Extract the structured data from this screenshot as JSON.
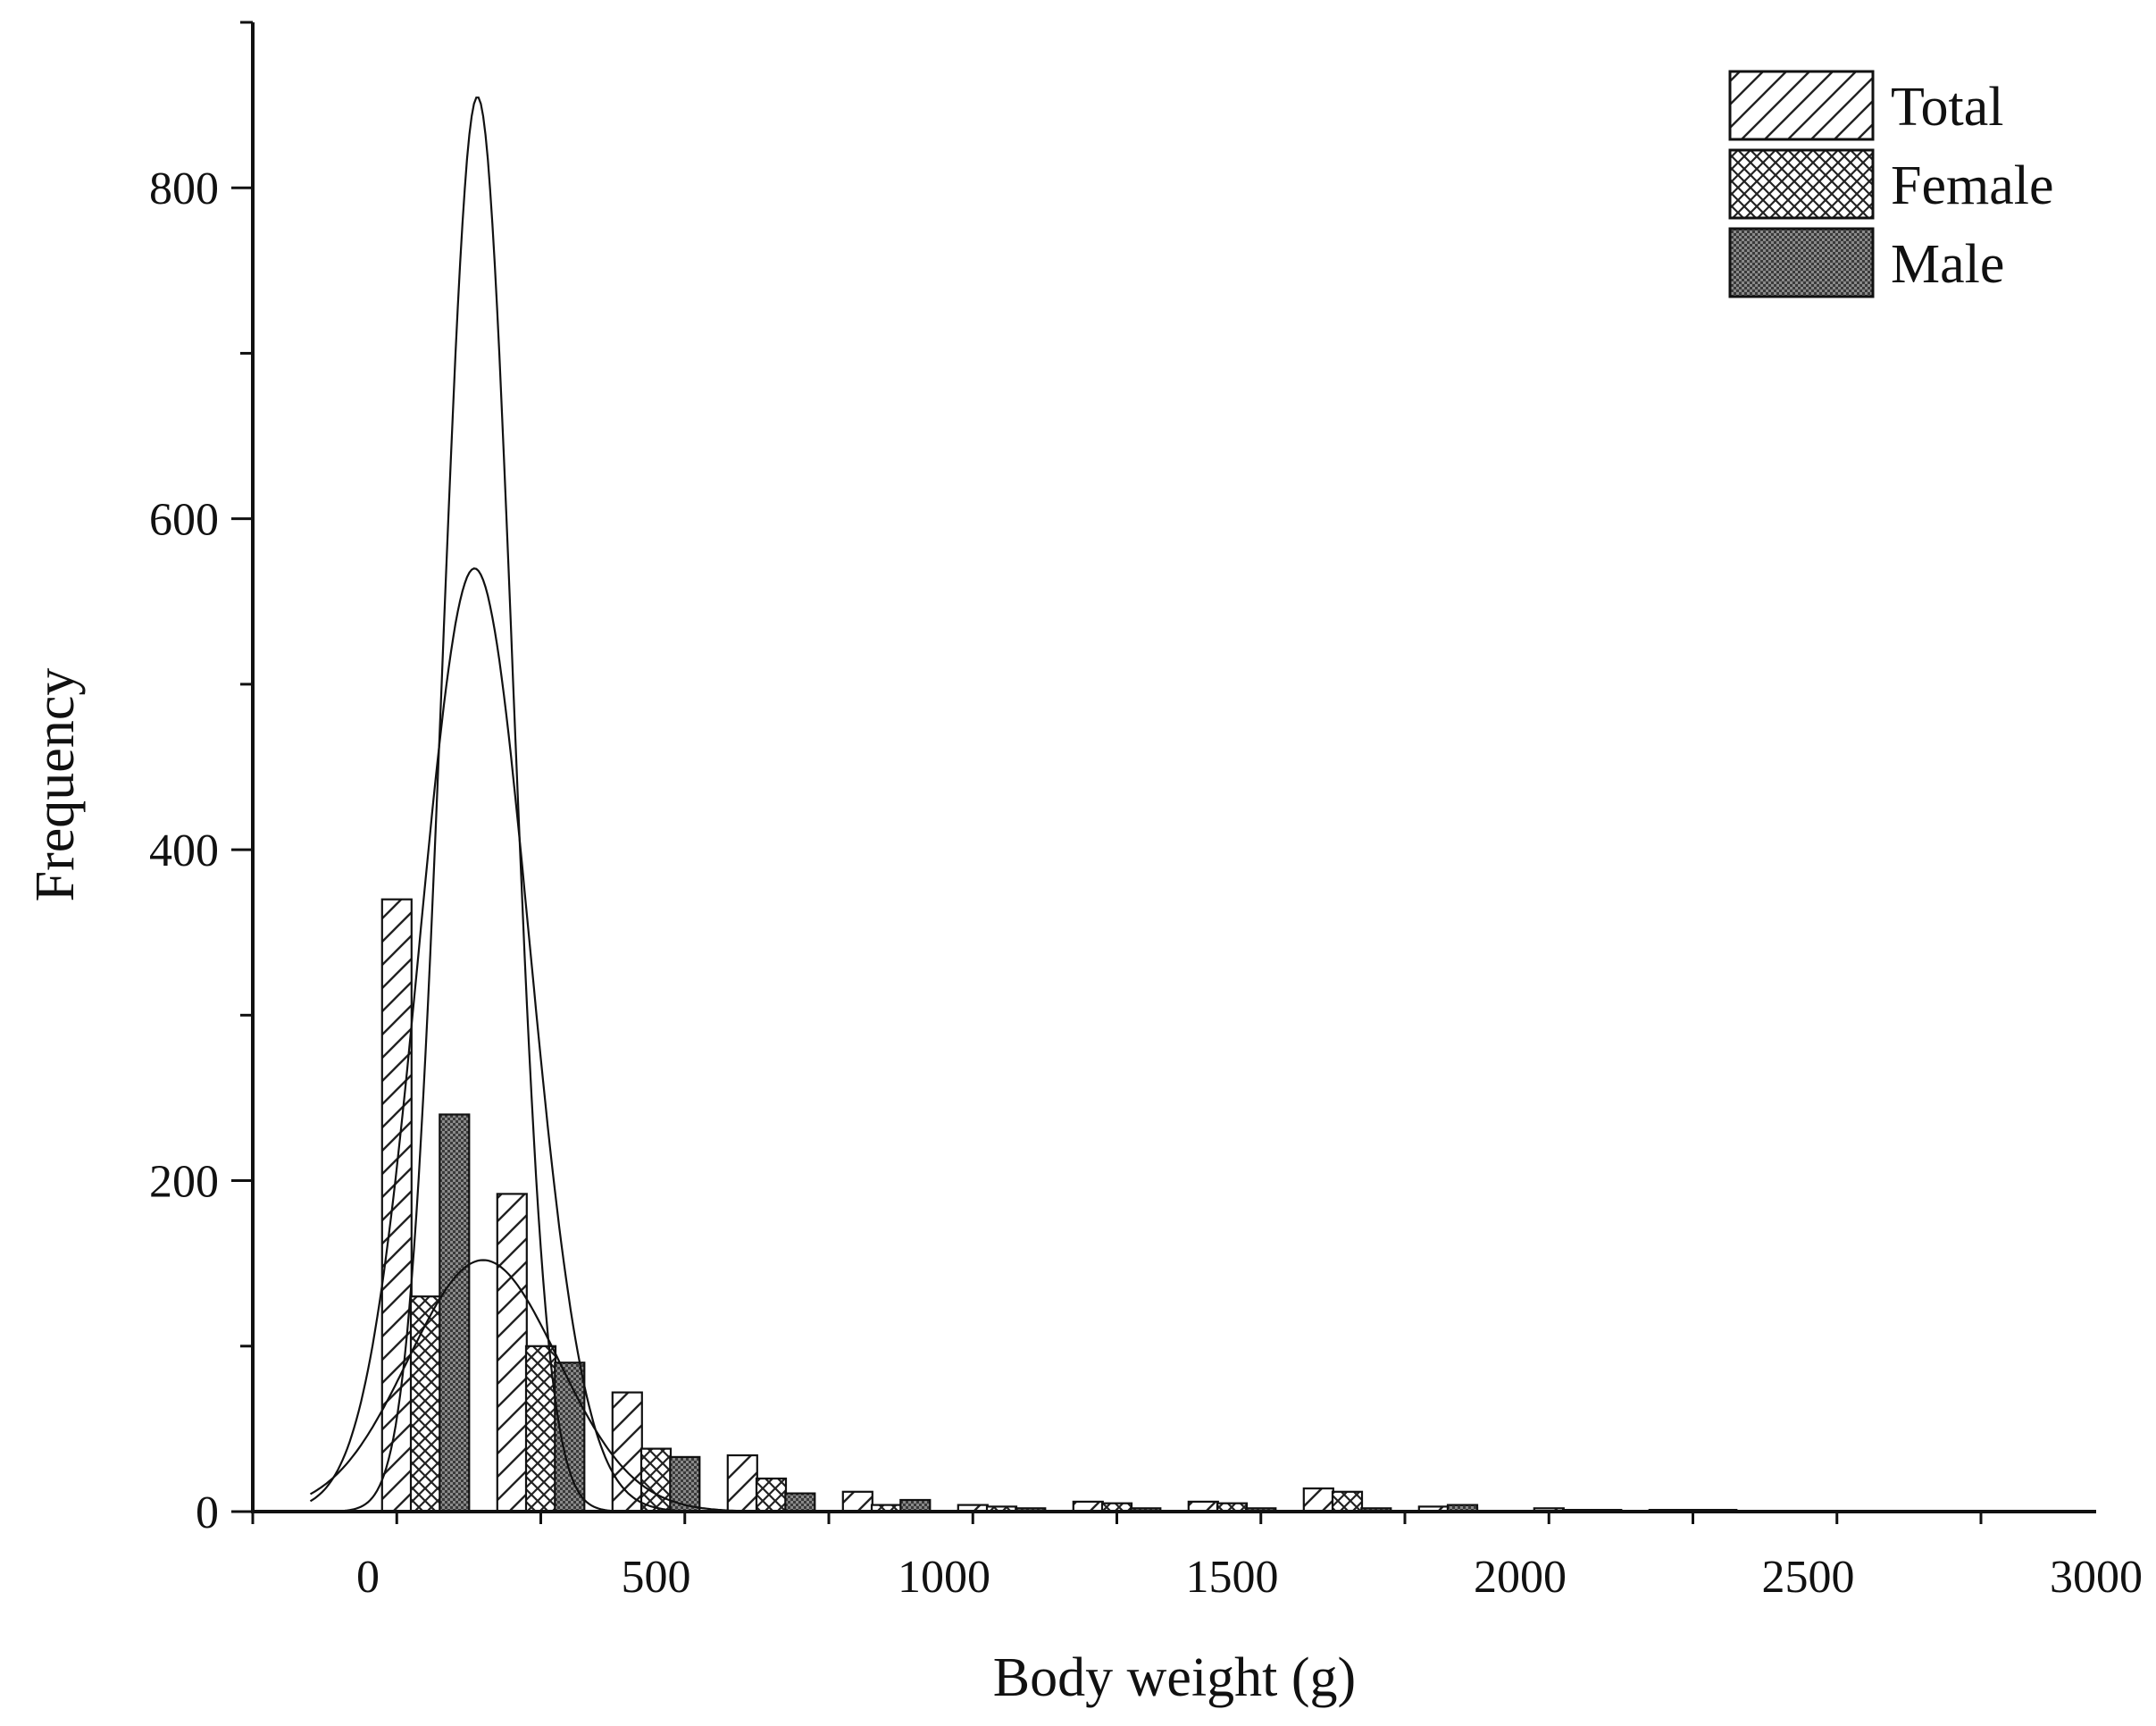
{
  "chart_data": {
    "type": "bar",
    "title": "",
    "xlabel": "Body weight (g)",
    "ylabel": "Frequency",
    "xlim": [
      -200,
      3000
    ],
    "ylim": [
      0,
      900
    ],
    "xticks": [
      0,
      500,
      1000,
      1500,
      2000,
      2500,
      3000
    ],
    "yticks": [
      0,
      200,
      400,
      600,
      800
    ],
    "bin_width": 100,
    "legend_position": "top-right",
    "series": [
      {
        "name": "Total",
        "pattern": "diagonal-hatch",
        "x": [
          50,
          250,
          450,
          650,
          850,
          1050,
          1250,
          1450,
          1650,
          1850,
          2050,
          2250
        ],
        "values": [
          370,
          192,
          72,
          34,
          12,
          4,
          6,
          6,
          14,
          3,
          2,
          1
        ],
        "fit": {
          "mean": 185,
          "sd": 95,
          "peak": 570
        }
      },
      {
        "name": "Female",
        "pattern": "cross-hatch",
        "x": [
          100,
          300,
          500,
          700,
          900,
          1100,
          1300,
          1500,
          1700,
          1900,
          2100,
          2300
        ],
        "values": [
          130,
          100,
          38,
          20,
          4,
          3,
          5,
          5,
          12,
          2,
          1,
          1
        ],
        "fit": {
          "mean": 200,
          "sd": 130,
          "peak": 152
        }
      },
      {
        "name": "Male",
        "pattern": "dense-dots",
        "x": [
          150,
          350,
          550,
          750,
          950,
          1150,
          1350,
          1550,
          1750,
          1900,
          2150,
          2350
        ],
        "values": [
          240,
          90,
          33,
          11,
          7,
          2,
          2,
          2,
          2,
          4,
          1,
          1
        ],
        "fit": {
          "mean": 190,
          "sd": 60,
          "peak": 855
        }
      }
    ]
  }
}
